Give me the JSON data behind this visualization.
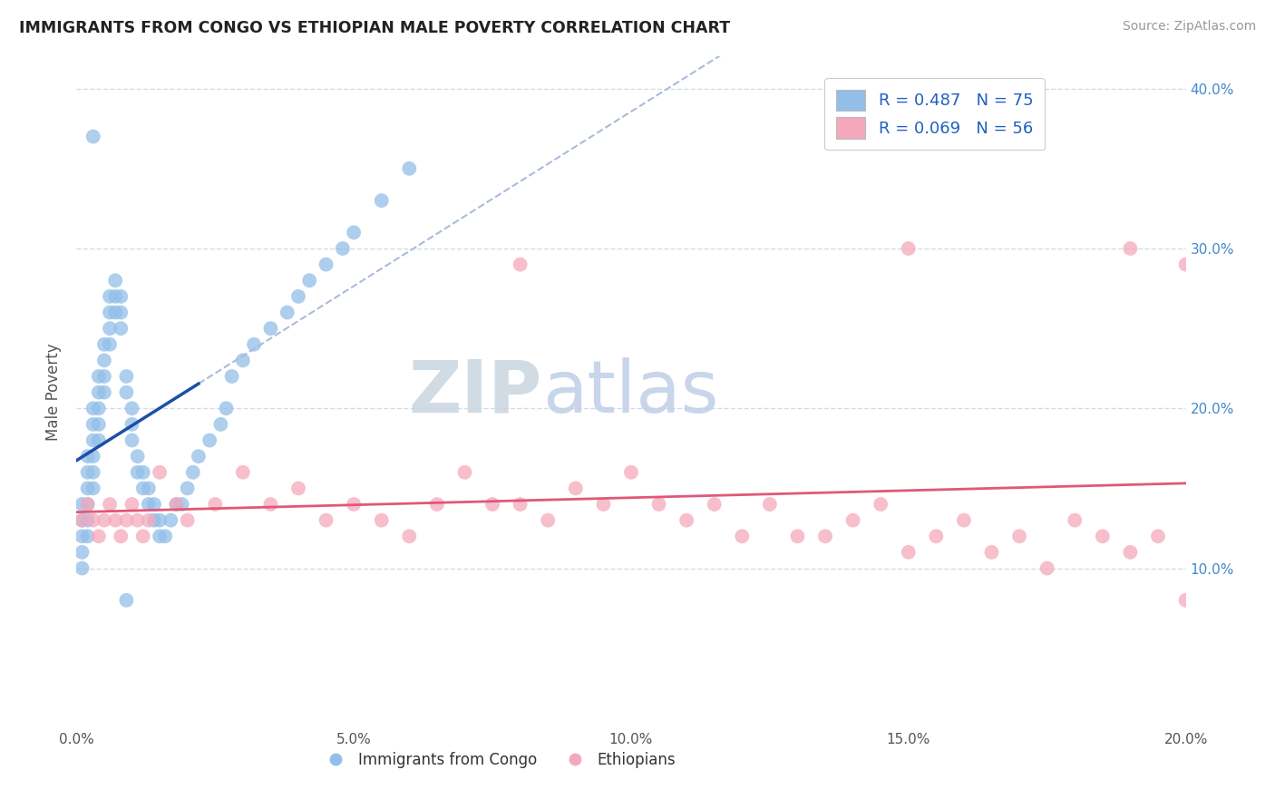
{
  "title": "IMMIGRANTS FROM CONGO VS ETHIOPIAN MALE POVERTY CORRELATION CHART",
  "source": "Source: ZipAtlas.com",
  "ylabel": "Male Poverty",
  "xlim": [
    0.0,
    0.2
  ],
  "ylim": [
    0.0,
    0.42
  ],
  "legend_blue_label": "R = 0.487   N = 75",
  "legend_pink_label": "R = 0.069   N = 56",
  "congo_color": "#92BEE8",
  "ethiopia_color": "#F5A8BC",
  "trend_blue": "#1B4FA8",
  "trend_pink": "#E05878",
  "dashed_color": "#AABCD8",
  "background": "#FFFFFF",
  "grid_color": "#D0DDE8",
  "watermark_zip_color": "#C8D5E0",
  "watermark_atlas_color": "#C0CEE8",
  "legend_text_color": "#2060C0",
  "right_axis_color": "#4488CC",
  "congo_x": [
    0.001,
    0.001,
    0.001,
    0.001,
    0.001,
    0.002,
    0.002,
    0.002,
    0.002,
    0.002,
    0.002,
    0.003,
    0.003,
    0.003,
    0.003,
    0.003,
    0.003,
    0.004,
    0.004,
    0.004,
    0.004,
    0.004,
    0.005,
    0.005,
    0.005,
    0.005,
    0.006,
    0.006,
    0.006,
    0.006,
    0.007,
    0.007,
    0.007,
    0.008,
    0.008,
    0.008,
    0.009,
    0.009,
    0.01,
    0.01,
    0.01,
    0.011,
    0.011,
    0.012,
    0.012,
    0.013,
    0.013,
    0.014,
    0.014,
    0.015,
    0.015,
    0.016,
    0.017,
    0.018,
    0.019,
    0.02,
    0.021,
    0.022,
    0.024,
    0.026,
    0.027,
    0.028,
    0.03,
    0.032,
    0.035,
    0.038,
    0.04,
    0.042,
    0.045,
    0.048,
    0.05,
    0.055,
    0.06,
    0.009,
    0.003
  ],
  "congo_y": [
    0.14,
    0.13,
    0.12,
    0.11,
    0.1,
    0.15,
    0.14,
    0.13,
    0.12,
    0.17,
    0.16,
    0.2,
    0.19,
    0.18,
    0.17,
    0.16,
    0.15,
    0.22,
    0.21,
    0.2,
    0.19,
    0.18,
    0.24,
    0.23,
    0.22,
    0.21,
    0.27,
    0.26,
    0.25,
    0.24,
    0.28,
    0.27,
    0.26,
    0.27,
    0.26,
    0.25,
    0.22,
    0.21,
    0.2,
    0.19,
    0.18,
    0.17,
    0.16,
    0.16,
    0.15,
    0.15,
    0.14,
    0.14,
    0.13,
    0.13,
    0.12,
    0.12,
    0.13,
    0.14,
    0.14,
    0.15,
    0.16,
    0.17,
    0.18,
    0.19,
    0.2,
    0.22,
    0.23,
    0.24,
    0.25,
    0.26,
    0.27,
    0.28,
    0.29,
    0.3,
    0.31,
    0.33,
    0.35,
    0.08,
    0.37
  ],
  "ethiopia_x": [
    0.001,
    0.002,
    0.003,
    0.004,
    0.005,
    0.006,
    0.007,
    0.008,
    0.009,
    0.01,
    0.011,
    0.012,
    0.013,
    0.015,
    0.018,
    0.02,
    0.025,
    0.03,
    0.035,
    0.04,
    0.045,
    0.05,
    0.055,
    0.06,
    0.065,
    0.07,
    0.075,
    0.08,
    0.085,
    0.09,
    0.095,
    0.1,
    0.105,
    0.11,
    0.115,
    0.12,
    0.125,
    0.13,
    0.135,
    0.14,
    0.145,
    0.15,
    0.155,
    0.16,
    0.165,
    0.17,
    0.175,
    0.18,
    0.185,
    0.19,
    0.195,
    0.2,
    0.15,
    0.08,
    0.19,
    0.2
  ],
  "ethiopia_y": [
    0.13,
    0.14,
    0.13,
    0.12,
    0.13,
    0.14,
    0.13,
    0.12,
    0.13,
    0.14,
    0.13,
    0.12,
    0.13,
    0.16,
    0.14,
    0.13,
    0.14,
    0.16,
    0.14,
    0.15,
    0.13,
    0.14,
    0.13,
    0.12,
    0.14,
    0.16,
    0.14,
    0.14,
    0.13,
    0.15,
    0.14,
    0.16,
    0.14,
    0.13,
    0.14,
    0.12,
    0.14,
    0.12,
    0.12,
    0.13,
    0.14,
    0.11,
    0.12,
    0.13,
    0.11,
    0.12,
    0.1,
    0.13,
    0.12,
    0.11,
    0.12,
    0.08,
    0.3,
    0.29,
    0.3,
    0.29
  ]
}
